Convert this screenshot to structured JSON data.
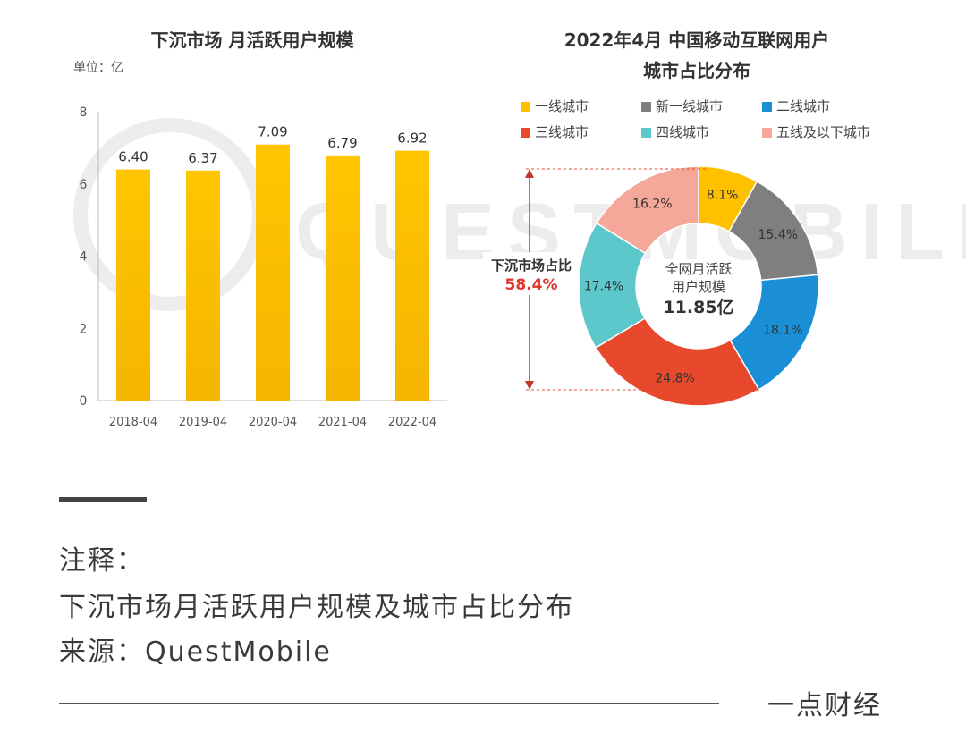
{
  "chart_data": [
    {
      "type": "bar",
      "title": "下沉市场 月活跃用户规模",
      "unit_label": "单位：亿",
      "categories": [
        "2018-04",
        "2019-04",
        "2020-04",
        "2021-04",
        "2022-04"
      ],
      "values": [
        6.4,
        6.37,
        7.09,
        6.79,
        6.92
      ],
      "value_labels": [
        "6.40",
        "6.37",
        "7.09",
        "6.79",
        "6.92"
      ],
      "ylim": [
        0,
        8
      ],
      "yticks": [
        "0",
        "2",
        "4",
        "6",
        "8"
      ],
      "bar_color": "#FFC600",
      "grid": false
    },
    {
      "type": "pie",
      "title_line1": "2022年4月 中国移动互联网用户",
      "title_line2": "城市占比分布",
      "legend": "top",
      "slices": [
        {
          "name": "一线城市",
          "value": 8.1,
          "label": "8.1%",
          "color": "#FFC000"
        },
        {
          "name": "新一线城市",
          "value": 15.4,
          "label": "15.4%",
          "color": "#7F7F7F"
        },
        {
          "name": "二线城市",
          "value": 18.1,
          "label": "18.1%",
          "color": "#1A8FD6"
        },
        {
          "name": "三线城市",
          "value": 24.8,
          "label": "24.8%",
          "color": "#E8482B"
        },
        {
          "name": "四线城市",
          "value": 17.4,
          "label": "17.4%",
          "color": "#5CC8CC"
        },
        {
          "name": "五线及以下城市",
          "value": 16.2,
          "label": "16.2%",
          "color": "#F5A79A"
        }
      ],
      "center_line1": "全网月活跃",
      "center_line2": "用户规模",
      "center_value": "11.85亿",
      "annotation_label": "下沉市场占比",
      "annotation_value": "58.4%"
    }
  ],
  "watermark": "QUESTMOBILE",
  "caption": {
    "label": "注释：",
    "text": "下沉市场月活跃用户规模及城市占比分布",
    "source": "来源：QuestMobile"
  },
  "brand": "一点财经"
}
